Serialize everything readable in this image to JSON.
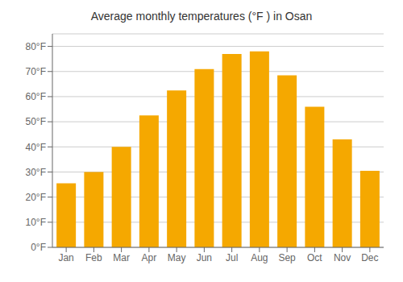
{
  "chart_data": {
    "type": "bar",
    "title": "Average monthly temperatures (°F ) in Osan",
    "categories": [
      "Jan",
      "Feb",
      "Mar",
      "Apr",
      "May",
      "Jun",
      "Jul",
      "Aug",
      "Sep",
      "Oct",
      "Nov",
      "Dec"
    ],
    "values": [
      25.5,
      30,
      40,
      52.5,
      62.5,
      71,
      77,
      78,
      68.5,
      56,
      43,
      30.5
    ],
    "color": "#F5A800",
    "ylim": [
      0,
      85
    ],
    "yticks": [
      {
        "value": 0,
        "label": "0°F"
      },
      {
        "value": 10,
        "label": "10°F"
      },
      {
        "value": 20,
        "label": "20°F"
      },
      {
        "value": 30,
        "label": "30°F"
      },
      {
        "value": 40,
        "label": "40°F"
      },
      {
        "value": 50,
        "label": "50°F"
      },
      {
        "value": 60,
        "label": "60°F"
      },
      {
        "value": 70,
        "label": "70°F"
      },
      {
        "value": 80,
        "label": "80°F"
      }
    ],
    "grid": true
  }
}
